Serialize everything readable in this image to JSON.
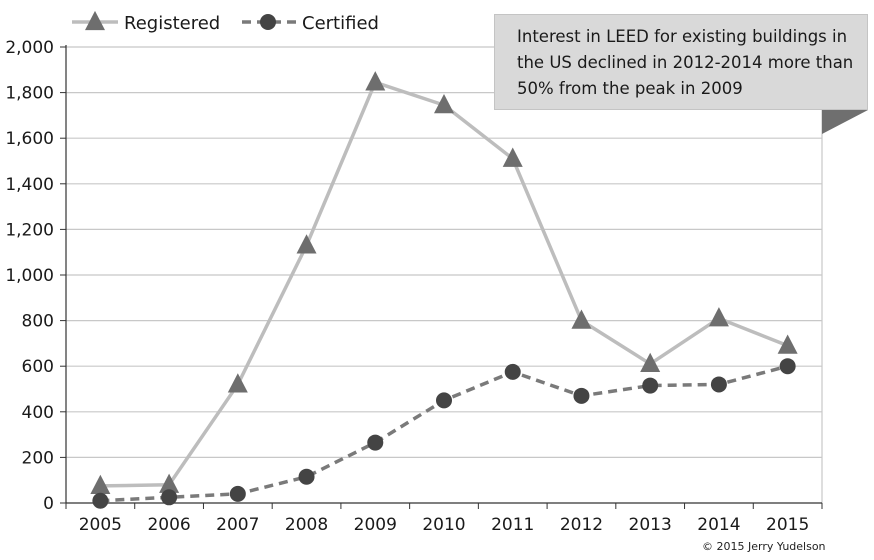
{
  "chart_data": {
    "type": "line",
    "categories": [
      "2005",
      "2006",
      "2007",
      "2008",
      "2009",
      "2010",
      "2011",
      "2012",
      "2013",
      "2014",
      "2015"
    ],
    "series": [
      {
        "name": "Registered",
        "values": [
          75,
          80,
          520,
          1130,
          1845,
          1745,
          1510,
          800,
          610,
          810,
          690
        ],
        "color": "#bdbdbd",
        "marker": "triangle",
        "marker_color": "#6e6e6e",
        "line_style": "solid"
      },
      {
        "name": "Certified",
        "values": [
          10,
          25,
          40,
          115,
          265,
          450,
          575,
          470,
          515,
          520,
          600
        ],
        "color": "#7a7a7a",
        "marker": "circle",
        "marker_color": "#444444",
        "line_style": "dashed"
      }
    ],
    "yticks": [
      "0",
      "200",
      "400",
      "600",
      "800",
      "1,000",
      "1,200",
      "1,400",
      "1,600",
      "1,800",
      "2,000"
    ],
    "ylim": [
      0,
      2000
    ],
    "ytick_step": 200,
    "grid": true,
    "legend": "top-left",
    "annotation": "Interest in LEED for existing buildings in the US declined in 2012-2014 more than 50% from the peak in 2009",
    "credit": "© 2015 Jerry Yudelson"
  }
}
